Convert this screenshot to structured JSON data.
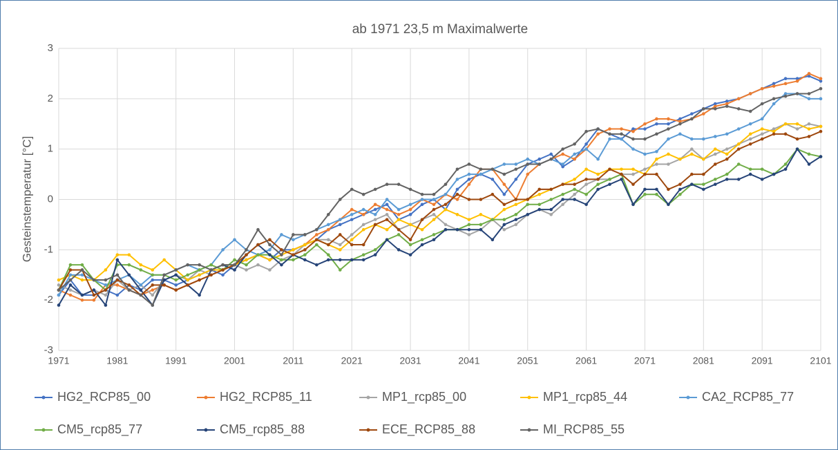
{
  "chart_data": {
    "type": "line",
    "title": "ab 1971   23,5 m Maximalwerte",
    "y_label": "Gesteinstemperatur [°C]",
    "x": [
      1971,
      1973,
      1975,
      1977,
      1979,
      1981,
      1983,
      1985,
      1987,
      1989,
      1991,
      1993,
      1995,
      1997,
      1999,
      2001,
      2003,
      2005,
      2007,
      2009,
      2011,
      2013,
      2015,
      2017,
      2019,
      2021,
      2023,
      2025,
      2027,
      2029,
      2031,
      2033,
      2035,
      2037,
      2039,
      2041,
      2043,
      2045,
      2047,
      2049,
      2051,
      2053,
      2055,
      2057,
      2059,
      2061,
      2063,
      2065,
      2067,
      2069,
      2071,
      2073,
      2075,
      2077,
      2079,
      2081,
      2083,
      2085,
      2087,
      2089,
      2091,
      2093,
      2095,
      2097,
      2099,
      2101
    ],
    "xlim": [
      1971,
      2101
    ],
    "xticks": [
      1971,
      1981,
      1991,
      2001,
      2011,
      2021,
      2031,
      2041,
      2051,
      2061,
      2071,
      2081,
      2091,
      2101
    ],
    "ylim": [
      -3,
      3
    ],
    "yticks": [
      3,
      2,
      1,
      0,
      -1,
      -2,
      -3
    ],
    "grid": true,
    "series": [
      {
        "name": "HG2_RCP85_00",
        "color": "#4472c4",
        "values": [
          -1.9,
          -1.6,
          -1.9,
          -1.9,
          -1.8,
          -1.9,
          -1.7,
          -1.8,
          -1.6,
          -1.6,
          -1.7,
          -1.6,
          -1.5,
          -1.4,
          -1.5,
          -1.3,
          -1.2,
          -1.1,
          -1.2,
          -1.0,
          -1.0,
          -0.9,
          -0.8,
          -0.6,
          -0.5,
          -0.4,
          -0.3,
          -0.2,
          -0.1,
          -0.4,
          -0.3,
          -0.1,
          0.0,
          -0.2,
          0.2,
          0.4,
          0.5,
          0.4,
          0.1,
          0.4,
          0.7,
          0.8,
          0.9,
          0.65,
          0.8,
          1.1,
          1.4,
          1.3,
          1.2,
          1.4,
          1.4,
          1.5,
          1.5,
          1.6,
          1.7,
          1.8,
          1.9,
          1.95,
          2.0,
          2.1,
          2.2,
          2.3,
          2.4,
          2.4,
          2.45,
          2.35
        ]
      },
      {
        "name": "HG2_RCP85_11",
        "color": "#ed7d31",
        "values": [
          -1.8,
          -1.9,
          -2.0,
          -2.0,
          -1.7,
          -1.7,
          -1.8,
          -1.9,
          -1.8,
          -1.7,
          -1.8,
          -1.7,
          -1.6,
          -1.5,
          -1.4,
          -1.3,
          -1.2,
          -1.1,
          -1.2,
          -1.1,
          -1.0,
          -0.9,
          -0.7,
          -0.6,
          -0.4,
          -0.2,
          -0.3,
          -0.1,
          -0.2,
          -0.3,
          -0.2,
          0.0,
          -0.1,
          0.1,
          0.0,
          0.3,
          0.6,
          0.6,
          0.3,
          0.0,
          0.5,
          0.7,
          0.8,
          0.9,
          0.8,
          1.0,
          1.3,
          1.4,
          1.4,
          1.35,
          1.5,
          1.6,
          1.6,
          1.55,
          1.6,
          1.7,
          1.85,
          1.9,
          2.0,
          2.1,
          2.2,
          2.25,
          2.3,
          2.35,
          2.5,
          2.4
        ]
      },
      {
        "name": "MP1_rcp85_00",
        "color": "#a5a5a5",
        "values": [
          -1.7,
          -1.8,
          -1.9,
          -1.8,
          -1.9,
          -1.6,
          -1.8,
          -1.7,
          -1.9,
          -1.6,
          -1.5,
          -1.6,
          -1.4,
          -1.5,
          -1.4,
          -1.3,
          -1.4,
          -1.3,
          -1.4,
          -1.2,
          -1.1,
          -0.9,
          -0.8,
          -0.8,
          -0.9,
          -0.7,
          -0.5,
          -0.4,
          -0.3,
          -0.6,
          -0.5,
          -0.4,
          -0.3,
          -0.5,
          -0.6,
          -0.7,
          -0.6,
          -0.4,
          -0.6,
          -0.5,
          -0.3,
          -0.2,
          -0.3,
          -0.1,
          0.1,
          0.3,
          0.4,
          0.4,
          0.5,
          0.5,
          0.6,
          0.7,
          0.7,
          0.8,
          1.0,
          0.8,
          0.9,
          1.0,
          1.1,
          1.2,
          1.3,
          1.4,
          1.5,
          1.4,
          1.5,
          1.45
        ]
      },
      {
        "name": "MP1_rcp85_44",
        "color": "#ffc000",
        "values": [
          -1.6,
          -1.5,
          -1.6,
          -1.6,
          -1.4,
          -1.1,
          -1.1,
          -1.3,
          -1.4,
          -1.2,
          -1.4,
          -1.6,
          -1.5,
          -1.4,
          -1.4,
          -1.3,
          -1.2,
          -1.1,
          -1.2,
          -1.1,
          -1.0,
          -0.9,
          -0.8,
          -0.9,
          -1.0,
          -0.8,
          -0.6,
          -0.5,
          -0.6,
          -0.4,
          -0.5,
          -0.6,
          -0.4,
          -0.2,
          -0.3,
          -0.4,
          -0.3,
          -0.4,
          -0.2,
          -0.1,
          0.0,
          0.1,
          0.2,
          0.3,
          0.4,
          0.6,
          0.5,
          0.6,
          0.6,
          0.6,
          0.5,
          0.8,
          0.9,
          0.8,
          0.9,
          0.8,
          1.0,
          0.9,
          1.1,
          1.3,
          1.4,
          1.35,
          1.5,
          1.5,
          1.4,
          1.45
        ]
      },
      {
        "name": "CA2_RCP85_77",
        "color": "#5b9bd5",
        "values": [
          -1.9,
          -1.5,
          -1.5,
          -1.6,
          -1.7,
          -1.6,
          -1.5,
          -1.7,
          -1.5,
          -1.5,
          -1.4,
          -1.3,
          -1.4,
          -1.3,
          -1.0,
          -0.8,
          -1.0,
          -1.1,
          -1.0,
          -0.7,
          -0.8,
          -0.7,
          -0.6,
          -0.5,
          -0.4,
          -0.3,
          -0.2,
          -0.3,
          0.0,
          -0.2,
          -0.1,
          0.0,
          0.0,
          0.1,
          0.4,
          0.5,
          0.5,
          0.6,
          0.7,
          0.7,
          0.8,
          0.7,
          0.8,
          0.7,
          0.9,
          1.0,
          0.8,
          1.2,
          1.2,
          1.0,
          0.9,
          0.95,
          1.2,
          1.3,
          1.2,
          1.2,
          1.25,
          1.3,
          1.4,
          1.5,
          1.6,
          1.9,
          2.1,
          2.1,
          2.0,
          2.0
        ]
      },
      {
        "name": "CM5_rcp85_77",
        "color": "#70ad47",
        "values": [
          -1.8,
          -1.3,
          -1.3,
          -1.6,
          -1.8,
          -1.3,
          -1.3,
          -1.4,
          -1.5,
          -1.5,
          -1.6,
          -1.5,
          -1.4,
          -1.3,
          -1.4,
          -1.2,
          -1.3,
          -1.1,
          -1.1,
          -1.2,
          -1.2,
          -1.1,
          -0.9,
          -1.1,
          -1.4,
          -1.2,
          -1.1,
          -1.0,
          -0.8,
          -0.7,
          -0.9,
          -0.8,
          -0.7,
          -0.6,
          -0.6,
          -0.5,
          -0.5,
          -0.4,
          -0.4,
          -0.3,
          -0.1,
          -0.1,
          0.0,
          0.1,
          0.2,
          0.1,
          0.3,
          0.4,
          0.5,
          -0.1,
          0.1,
          0.1,
          -0.1,
          0.1,
          0.3,
          0.3,
          0.4,
          0.5,
          0.7,
          0.6,
          0.6,
          0.5,
          0.7,
          1.0,
          0.9,
          0.85
        ]
      },
      {
        "name": "CM5_rcp85_88",
        "color": "#264478",
        "values": [
          -2.1,
          -1.7,
          -1.9,
          -1.8,
          -2.1,
          -1.2,
          -1.5,
          -1.8,
          -2.1,
          -1.6,
          -1.5,
          -1.7,
          -1.9,
          -1.4,
          -1.3,
          -1.4,
          -1.1,
          -0.9,
          -1.1,
          -1.3,
          -1.1,
          -1.2,
          -1.3,
          -1.2,
          -1.2,
          -1.2,
          -1.2,
          -1.1,
          -0.8,
          -1.0,
          -1.1,
          -0.9,
          -0.8,
          -0.6,
          -0.6,
          -0.6,
          -0.6,
          -0.8,
          -0.5,
          -0.4,
          -0.3,
          -0.2,
          -0.2,
          0.0,
          0.0,
          -0.1,
          0.2,
          0.3,
          0.4,
          -0.1,
          0.2,
          0.2,
          -0.1,
          0.2,
          0.3,
          0.2,
          0.3,
          0.4,
          0.4,
          0.5,
          0.4,
          0.5,
          0.6,
          1.0,
          0.7,
          0.85
        ]
      },
      {
        "name": "ECE_RCP85_88",
        "color": "#9e480e",
        "values": [
          -1.8,
          -1.4,
          -1.4,
          -1.9,
          -1.8,
          -1.6,
          -1.7,
          -1.9,
          -1.7,
          -1.7,
          -1.8,
          -1.7,
          -1.6,
          -1.5,
          -1.4,
          -1.3,
          -1.1,
          -0.9,
          -0.8,
          -1.0,
          -1.1,
          -1.0,
          -0.8,
          -0.9,
          -0.7,
          -0.9,
          -0.9,
          -0.5,
          -0.4,
          -0.6,
          -0.8,
          -0.4,
          -0.2,
          -0.1,
          0.1,
          0.0,
          0.0,
          0.1,
          -0.1,
          0.0,
          0.0,
          0.2,
          0.2,
          0.3,
          0.3,
          0.4,
          0.4,
          0.6,
          0.5,
          0.3,
          0.5,
          0.5,
          0.2,
          0.3,
          0.5,
          0.5,
          0.7,
          0.8,
          1.0,
          1.1,
          1.2,
          1.3,
          1.3,
          1.2,
          1.25,
          1.35
        ]
      },
      {
        "name": "MI_RCP85_55",
        "color": "#636363",
        "values": [
          -1.8,
          -1.6,
          -1.4,
          -1.6,
          -1.6,
          -1.5,
          -1.8,
          -1.9,
          -2.1,
          -1.5,
          -1.4,
          -1.3,
          -1.3,
          -1.4,
          -1.3,
          -1.3,
          -1.0,
          -0.6,
          -0.9,
          -1.1,
          -0.7,
          -0.7,
          -0.6,
          -0.3,
          0.0,
          0.2,
          0.1,
          0.2,
          0.3,
          0.3,
          0.2,
          0.1,
          0.1,
          0.3,
          0.6,
          0.7,
          0.6,
          0.6,
          0.5,
          0.6,
          0.7,
          0.7,
          0.8,
          1.0,
          1.1,
          1.35,
          1.4,
          1.3,
          1.3,
          1.2,
          1.2,
          1.3,
          1.4,
          1.5,
          1.6,
          1.8,
          1.8,
          1.85,
          1.8,
          1.75,
          1.9,
          2.0,
          2.05,
          2.1,
          2.1,
          2.2
        ]
      }
    ]
  }
}
